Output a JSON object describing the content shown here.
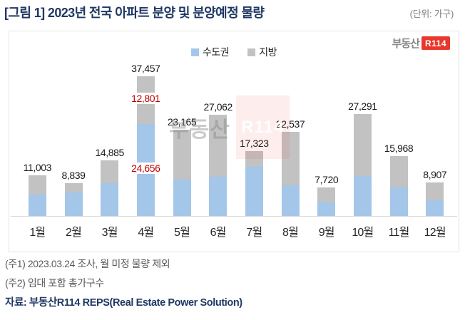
{
  "header": {
    "title": "[그림 1] 2023년 전국 아파트 분양 및 분양예정 물량",
    "unit": "(단위: 가구)"
  },
  "logo": {
    "prefix": "부동산",
    "mark": "R114"
  },
  "legend": [
    {
      "label": "수도권",
      "color": "#A3C6E9"
    },
    {
      "label": "지방",
      "color": "#C2C2C2"
    }
  ],
  "watermark": {
    "text": "부동산",
    "mark": "R114"
  },
  "chart_data": {
    "type": "bar",
    "stacked": true,
    "title": "2023년 전국 아파트 분양 및 분양예정 물량",
    "unit": "가구",
    "categories": [
      "1월",
      "2월",
      "3월",
      "4월",
      "5월",
      "6월",
      "7월",
      "8월",
      "9월",
      "10월",
      "11월",
      "12월"
    ],
    "series": [
      {
        "name": "수도권",
        "color": "#A3C6E9",
        "values": [
          5700,
          6300,
          8800,
          24656,
          9800,
          10600,
          13200,
          8200,
          3600,
          10800,
          7700,
          4200
        ]
      },
      {
        "name": "지방",
        "color": "#C2C2C2",
        "values": [
          5303,
          2539,
          6085,
          12801,
          13365,
          16462,
          4123,
          14337,
          4120,
          16491,
          8268,
          4707
        ]
      }
    ],
    "totals": [
      11003,
      8839,
      14885,
      37457,
      23165,
      27062,
      17323,
      22537,
      7720,
      27291,
      15968,
      8907
    ],
    "total_labels": [
      "11,003",
      "8,839",
      "14,885",
      "37,457",
      "23,165",
      "27,062",
      "17,323",
      "22,537",
      "7,720",
      "27,291",
      "15,968",
      "8,907"
    ],
    "annotations": [
      {
        "category": "4월",
        "series": "지방",
        "label": "12,801",
        "color": "#C00000"
      },
      {
        "category": "4월",
        "series": "수도권",
        "label": "24,656",
        "color": "#C00000"
      }
    ],
    "ylim": [
      0,
      40000
    ],
    "grid": false,
    "legend_position": "top",
    "xlabel": "",
    "ylabel": ""
  },
  "footer": {
    "note1": "(주1) 2023.03.24 조사, 월 미정 물량 제외",
    "note2": "(주2) 임대 포함 총가구수",
    "source": "자료: 부동산R114 REPS(Real Estate Power Solution)"
  }
}
